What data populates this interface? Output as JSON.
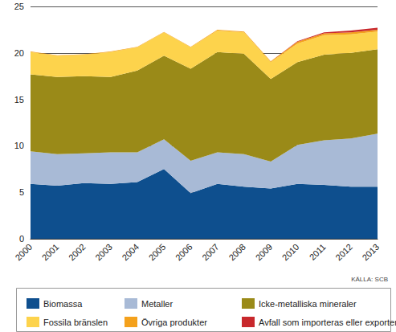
{
  "chart_data": {
    "type": "area",
    "stacked": true,
    "grid": true,
    "legend": "bottom",
    "source": "KÄLLA: SCB",
    "categories": [
      "2000",
      "2001",
      "2002",
      "2003",
      "2004",
      "2005",
      "2006",
      "2007",
      "2008",
      "2009",
      "2010",
      "2011",
      "2012",
      "2013"
    ],
    "ylim": [
      0,
      25
    ],
    "yticks": [
      0,
      5,
      10,
      15,
      20,
      25
    ],
    "series": [
      {
        "name": "Biomassa",
        "color": "#0e4f8e",
        "values": [
          5.9,
          5.7,
          6.0,
          5.9,
          6.1,
          7.5,
          4.9,
          5.9,
          5.6,
          5.4,
          5.9,
          5.8,
          5.6,
          5.6
        ]
      },
      {
        "name": "Metaller",
        "color": "#a8bad6",
        "values": [
          3.5,
          3.4,
          3.2,
          3.4,
          3.2,
          3.2,
          3.5,
          3.4,
          3.5,
          2.9,
          4.2,
          4.8,
          5.2,
          5.7
        ]
      },
      {
        "name": "Icke-metalliska mineraler",
        "color": "#9a8a18",
        "values": [
          8.3,
          8.3,
          8.3,
          8.1,
          8.8,
          9.0,
          9.9,
          10.8,
          10.8,
          8.9,
          8.9,
          9.2,
          9.2,
          9.1
        ]
      },
      {
        "name": "Fossila bränslen",
        "color": "#fdd34c",
        "values": [
          2.4,
          2.3,
          2.3,
          2.7,
          2.5,
          2.5,
          2.3,
          2.3,
          2.3,
          1.8,
          2.0,
          2.1,
          2.0,
          1.9
        ]
      },
      {
        "name": "Övriga produkter",
        "color": "#f4a11c",
        "values": [
          0.05,
          0.05,
          0.05,
          0.05,
          0.05,
          0.05,
          0.05,
          0.1,
          0.1,
          0.1,
          0.2,
          0.2,
          0.2,
          0.2
        ]
      },
      {
        "name": "Avfall som importeras eller exporteras",
        "color": "#c8282c",
        "values": [
          0,
          0,
          0,
          0,
          0,
          0,
          0,
          0,
          0,
          0,
          0.05,
          0.1,
          0.2,
          0.2
        ]
      }
    ]
  }
}
